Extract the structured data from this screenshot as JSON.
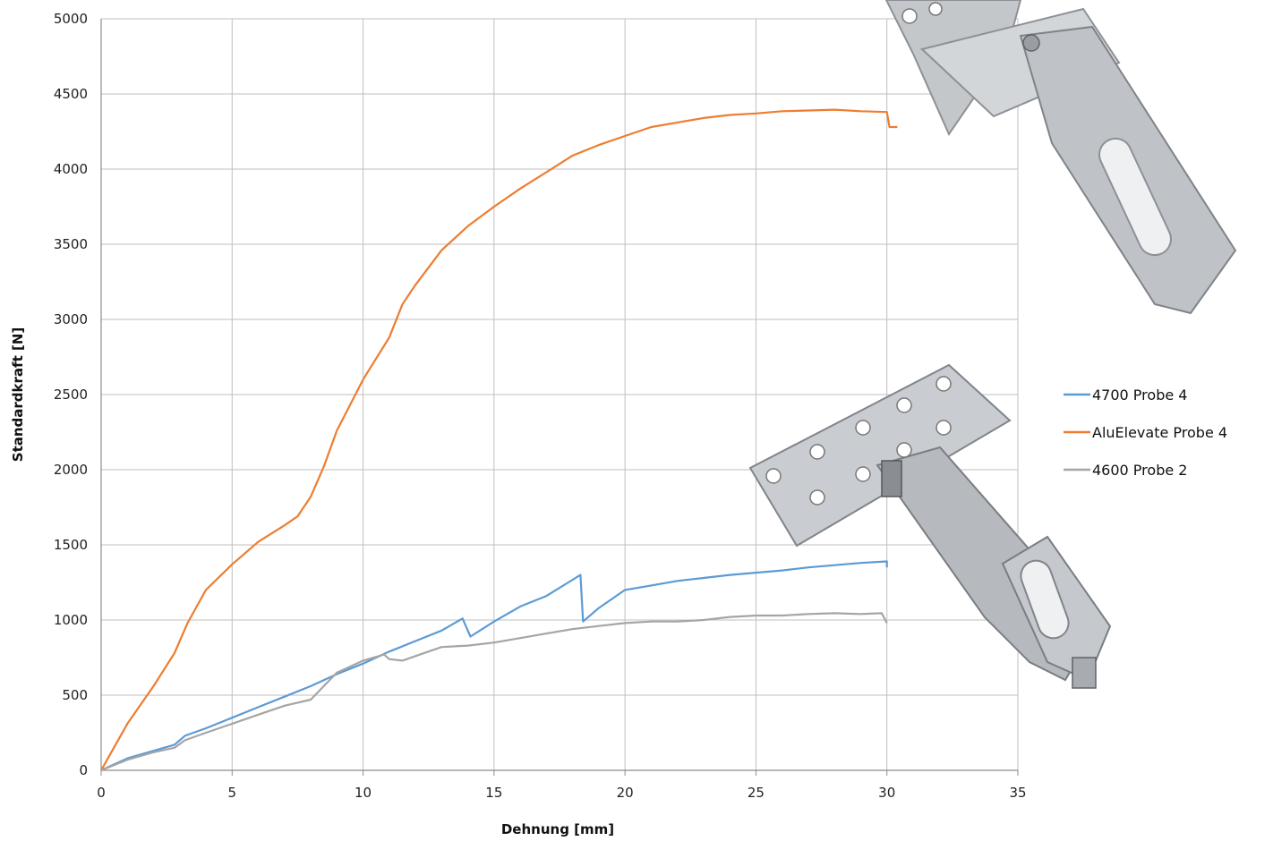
{
  "chart_data": {
    "type": "line",
    "title": "",
    "xlabel": "Dehnung [mm]",
    "ylabel": "Standardkraft [N]",
    "xlim": [
      0,
      35
    ],
    "ylim": [
      0,
      5000
    ],
    "x_ticks": [
      0,
      5,
      10,
      15,
      20,
      25,
      30,
      35
    ],
    "y_ticks": [
      0,
      500,
      1000,
      1500,
      2000,
      2500,
      3000,
      3500,
      4000,
      4500,
      5000
    ],
    "grid": true,
    "legend_position": "right",
    "series": [
      {
        "name": "4700 Probe 4",
        "color": "#5b9bd5",
        "points": [
          [
            0,
            0
          ],
          [
            1,
            80
          ],
          [
            2,
            130
          ],
          [
            2.8,
            170
          ],
          [
            3.2,
            230
          ],
          [
            4,
            280
          ],
          [
            5,
            350
          ],
          [
            6,
            420
          ],
          [
            7,
            490
          ],
          [
            8,
            560
          ],
          [
            9,
            640
          ],
          [
            10,
            710
          ],
          [
            11,
            790
          ],
          [
            12,
            860
          ],
          [
            13,
            930
          ],
          [
            13.8,
            1010
          ],
          [
            14.1,
            890
          ],
          [
            15,
            990
          ],
          [
            16,
            1090
          ],
          [
            17,
            1160
          ],
          [
            18.3,
            1300
          ],
          [
            18.4,
            990
          ],
          [
            19,
            1080
          ],
          [
            20,
            1200
          ],
          [
            21,
            1230
          ],
          [
            22,
            1260
          ],
          [
            23,
            1280
          ],
          [
            24,
            1300
          ],
          [
            25,
            1315
          ],
          [
            26,
            1330
          ],
          [
            27,
            1350
          ],
          [
            28,
            1365
          ],
          [
            29,
            1380
          ],
          [
            30,
            1390
          ],
          [
            30,
            1350
          ]
        ]
      },
      {
        "name": "AluElevate Probe 4",
        "color": "#ed7d31",
        "points": [
          [
            0,
            0
          ],
          [
            1,
            310
          ],
          [
            2,
            560
          ],
          [
            2.8,
            780
          ],
          [
            3.3,
            980
          ],
          [
            4,
            1200
          ],
          [
            5,
            1370
          ],
          [
            6,
            1520
          ],
          [
            7,
            1630
          ],
          [
            7.5,
            1690
          ],
          [
            8,
            1820
          ],
          [
            8.5,
            2020
          ],
          [
            9,
            2260
          ],
          [
            10,
            2600
          ],
          [
            11,
            2880
          ],
          [
            11.5,
            3100
          ],
          [
            12,
            3230
          ],
          [
            13,
            3460
          ],
          [
            14,
            3620
          ],
          [
            15,
            3750
          ],
          [
            16,
            3870
          ],
          [
            17,
            3980
          ],
          [
            18,
            4090
          ],
          [
            19,
            4160
          ],
          [
            20,
            4220
          ],
          [
            21,
            4280
          ],
          [
            22,
            4310
          ],
          [
            23,
            4340
          ],
          [
            24,
            4360
          ],
          [
            25,
            4370
          ],
          [
            26,
            4385
          ],
          [
            27,
            4390
          ],
          [
            28,
            4395
          ],
          [
            29,
            4385
          ],
          [
            30,
            4380
          ],
          [
            30.1,
            4280
          ],
          [
            30.4,
            4280
          ]
        ]
      },
      {
        "name": "4600 Probe 2",
        "color": "#a5a5a5",
        "points": [
          [
            0,
            0
          ],
          [
            1,
            70
          ],
          [
            2,
            120
          ],
          [
            2.8,
            150
          ],
          [
            3.2,
            200
          ],
          [
            4,
            250
          ],
          [
            5,
            310
          ],
          [
            6,
            370
          ],
          [
            7,
            430
          ],
          [
            8,
            470
          ],
          [
            8.5,
            560
          ],
          [
            9,
            650
          ],
          [
            10,
            730
          ],
          [
            10.8,
            770
          ],
          [
            11,
            740
          ],
          [
            11.5,
            730
          ],
          [
            12,
            760
          ],
          [
            13,
            820
          ],
          [
            14,
            830
          ],
          [
            15,
            850
          ],
          [
            16,
            880
          ],
          [
            17,
            910
          ],
          [
            18,
            940
          ],
          [
            19,
            960
          ],
          [
            20,
            980
          ],
          [
            21,
            990
          ],
          [
            22,
            990
          ],
          [
            23,
            1000
          ],
          [
            24,
            1020
          ],
          [
            25,
            1030
          ],
          [
            26,
            1030
          ],
          [
            27,
            1040
          ],
          [
            28,
            1045
          ],
          [
            29,
            1040
          ],
          [
            29.8,
            1045
          ],
          [
            30,
            980
          ]
        ]
      }
    ]
  },
  "colors": {
    "grid": "#bfbfbf",
    "axis": "#8c8c8c",
    "photo_metal": "#b9bcbf"
  }
}
